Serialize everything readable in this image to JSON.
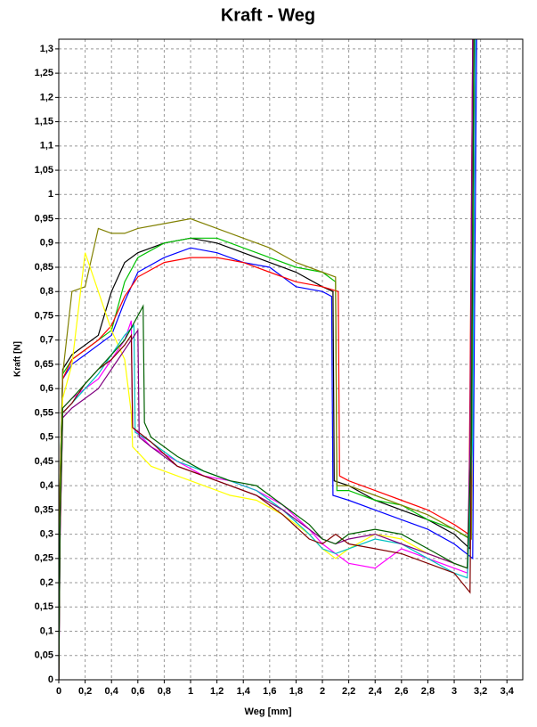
{
  "chart_data": {
    "type": "line",
    "title": "Kraft - Weg",
    "x_label": "Weg [mm]",
    "y_label": "Kraft [N]",
    "grid": true,
    "xlim": [
      0,
      3.52
    ],
    "ylim": [
      0,
      1.32
    ],
    "xticks": [
      0,
      {
        "value": 0.2,
        "label": "0,2"
      },
      {
        "value": 0.4,
        "label": "0,4"
      },
      {
        "value": 0.6,
        "label": "0,6"
      },
      {
        "value": 0.8,
        "label": "0,8"
      },
      1,
      {
        "value": 1.2,
        "label": "1,2"
      },
      {
        "value": 1.4,
        "label": "1,4"
      },
      {
        "value": 1.6,
        "label": "1,6"
      },
      {
        "value": 1.8,
        "label": "1,8"
      },
      2,
      {
        "value": 2.2,
        "label": "2,2"
      },
      {
        "value": 2.4,
        "label": "2,4"
      },
      {
        "value": 2.6,
        "label": "2,6"
      },
      {
        "value": 2.8,
        "label": "2,8"
      },
      3,
      {
        "value": 3.2,
        "label": "3,2"
      },
      {
        "value": 3.4,
        "label": "3,4"
      }
    ],
    "yticks": [
      0,
      {
        "value": 0.05,
        "label": "0,05"
      },
      {
        "value": 0.1,
        "label": "0,1"
      },
      {
        "value": 0.15,
        "label": "0,15"
      },
      {
        "value": 0.2,
        "label": "0,2"
      },
      {
        "value": 0.25,
        "label": "0,25"
      },
      {
        "value": 0.3,
        "label": "0,3"
      },
      {
        "value": 0.35,
        "label": "0,35"
      },
      {
        "value": 0.4,
        "label": "0,4"
      },
      {
        "value": 0.45,
        "label": "0,45"
      },
      {
        "value": 0.5,
        "label": "0,5"
      },
      {
        "value": 0.55,
        "label": "0,55"
      },
      {
        "value": 0.6,
        "label": "0,6"
      },
      {
        "value": 0.65,
        "label": "0,65"
      },
      {
        "value": 0.7,
        "label": "0,7"
      },
      {
        "value": 0.75,
        "label": "0,75"
      },
      {
        "value": 0.8,
        "label": "0,8"
      },
      {
        "value": 0.85,
        "label": "0,85"
      },
      {
        "value": 0.9,
        "label": "0,9"
      },
      {
        "value": 0.95,
        "label": "0,95"
      },
      1,
      {
        "value": 1.05,
        "label": "1,05"
      },
      {
        "value": 1.1,
        "label": "1,1"
      },
      {
        "value": 1.15,
        "label": "1,15"
      },
      {
        "value": 1.2,
        "label": "1,2"
      },
      {
        "value": 1.25,
        "label": "1,25"
      },
      {
        "value": 1.3,
        "label": "1,3"
      }
    ],
    "series": [
      {
        "color": "#000000",
        "x": [
          0,
          0.01,
          0.03,
          0.1,
          0.2,
          0.3,
          0.4,
          0.5,
          0.6,
          0.8,
          1.0,
          1.2,
          1.4,
          1.6,
          1.8,
          2.0,
          2.08,
          2.09,
          2.2,
          2.4,
          2.6,
          2.8,
          3.0,
          3.12,
          3.13,
          3.15
        ],
        "values": [
          0,
          0.4,
          0.64,
          0.67,
          0.69,
          0.71,
          0.8,
          0.86,
          0.88,
          0.9,
          0.91,
          0.9,
          0.88,
          0.86,
          0.84,
          0.81,
          0.8,
          0.41,
          0.4,
          0.37,
          0.35,
          0.33,
          0.3,
          0.27,
          0.6,
          1.32
        ]
      },
      {
        "color": "#00c000",
        "x": [
          0,
          0.01,
          0.03,
          0.1,
          0.2,
          0.3,
          0.4,
          0.5,
          0.6,
          0.8,
          1.0,
          1.2,
          1.4,
          1.6,
          1.8,
          2.0,
          2.1,
          2.11,
          2.2,
          2.4,
          2.6,
          2.8,
          3.0,
          3.12,
          3.13,
          3.15
        ],
        "values": [
          0,
          0.42,
          0.63,
          0.66,
          0.68,
          0.7,
          0.72,
          0.82,
          0.87,
          0.9,
          0.91,
          0.91,
          0.89,
          0.87,
          0.85,
          0.84,
          0.82,
          0.39,
          0.39,
          0.37,
          0.36,
          0.33,
          0.31,
          0.29,
          0.6,
          1.32
        ]
      },
      {
        "color": "#0000ff",
        "x": [
          0,
          0.01,
          0.03,
          0.1,
          0.2,
          0.3,
          0.4,
          0.5,
          0.6,
          0.8,
          1.0,
          1.2,
          1.4,
          1.6,
          1.8,
          2.0,
          2.07,
          2.08,
          2.2,
          2.4,
          2.6,
          2.8,
          3.0,
          3.14,
          3.15,
          3.17
        ],
        "values": [
          0,
          0.38,
          0.62,
          0.65,
          0.67,
          0.69,
          0.71,
          0.78,
          0.84,
          0.87,
          0.89,
          0.88,
          0.86,
          0.85,
          0.81,
          0.8,
          0.79,
          0.38,
          0.37,
          0.35,
          0.33,
          0.31,
          0.28,
          0.25,
          0.6,
          1.32
        ]
      },
      {
        "color": "#ff0000",
        "x": [
          0,
          0.01,
          0.03,
          0.1,
          0.2,
          0.3,
          0.4,
          0.5,
          0.6,
          0.8,
          1.0,
          1.2,
          1.4,
          1.6,
          1.8,
          2.0,
          2.12,
          2.13,
          2.2,
          2.4,
          2.6,
          2.8,
          3.0,
          3.11,
          3.12,
          3.14
        ],
        "values": [
          0,
          0.41,
          0.62,
          0.66,
          0.68,
          0.7,
          0.73,
          0.79,
          0.83,
          0.86,
          0.87,
          0.87,
          0.86,
          0.84,
          0.82,
          0.81,
          0.8,
          0.42,
          0.41,
          0.39,
          0.37,
          0.35,
          0.32,
          0.3,
          0.6,
          1.32
        ]
      },
      {
        "color": "#808000",
        "x": [
          0,
          0.01,
          0.03,
          0.1,
          0.2,
          0.3,
          0.4,
          0.5,
          0.6,
          0.8,
          1.0,
          1.2,
          1.4,
          1.6,
          1.8,
          2.0,
          2.1,
          2.11,
          2.2,
          2.4,
          2.6,
          2.8,
          3.0,
          3.13,
          3.14,
          3.16
        ],
        "values": [
          0,
          0.4,
          0.63,
          0.8,
          0.81,
          0.93,
          0.92,
          0.92,
          0.93,
          0.94,
          0.95,
          0.93,
          0.91,
          0.89,
          0.86,
          0.84,
          0.83,
          0.4,
          0.4,
          0.38,
          0.36,
          0.34,
          0.31,
          0.29,
          0.6,
          1.32
        ]
      },
      {
        "color": "#ff00ff",
        "x": [
          0,
          0.01,
          0.03,
          0.1,
          0.2,
          0.3,
          0.4,
          0.5,
          0.55,
          0.56,
          0.7,
          0.9,
          1.1,
          1.3,
          1.5,
          1.7,
          1.9,
          2.0,
          2.1,
          2.2,
          2.4,
          2.6,
          2.8,
          3.0,
          3.1,
          3.13,
          3.15
        ],
        "values": [
          0,
          0.3,
          0.56,
          0.58,
          0.6,
          0.62,
          0.66,
          0.7,
          0.74,
          0.52,
          0.48,
          0.45,
          0.42,
          0.41,
          0.39,
          0.36,
          0.31,
          0.28,
          0.26,
          0.24,
          0.23,
          0.27,
          0.25,
          0.23,
          0.22,
          0.5,
          1.32
        ]
      },
      {
        "color": "#ffff00",
        "x": [
          0,
          0.01,
          0.03,
          0.1,
          0.2,
          0.3,
          0.4,
          0.5,
          0.55,
          0.56,
          0.7,
          0.9,
          1.1,
          1.3,
          1.5,
          1.7,
          1.9,
          2.0,
          2.1,
          2.2,
          2.4,
          2.6,
          2.8,
          3.0,
          3.1,
          3.13,
          3.15
        ],
        "values": [
          0,
          0.35,
          0.58,
          0.65,
          0.88,
          0.8,
          0.72,
          0.66,
          0.55,
          0.48,
          0.44,
          0.42,
          0.4,
          0.38,
          0.37,
          0.34,
          0.3,
          0.27,
          0.25,
          0.27,
          0.3,
          0.29,
          0.26,
          0.24,
          0.23,
          0.5,
          1.32
        ]
      },
      {
        "color": "#00c0c0",
        "x": [
          0,
          0.01,
          0.03,
          0.1,
          0.2,
          0.3,
          0.4,
          0.5,
          0.57,
          0.58,
          0.7,
          0.9,
          1.1,
          1.3,
          1.5,
          1.7,
          1.9,
          2.0,
          2.1,
          2.2,
          2.4,
          2.6,
          2.8,
          3.0,
          3.1,
          3.14,
          3.16
        ],
        "values": [
          0,
          0.32,
          0.55,
          0.57,
          0.6,
          0.63,
          0.67,
          0.71,
          0.73,
          0.51,
          0.49,
          0.45,
          0.43,
          0.41,
          0.39,
          0.35,
          0.3,
          0.27,
          0.26,
          0.27,
          0.29,
          0.28,
          0.25,
          0.22,
          0.21,
          0.5,
          1.32
        ]
      },
      {
        "color": "#800080",
        "x": [
          0,
          0.01,
          0.03,
          0.1,
          0.2,
          0.3,
          0.4,
          0.5,
          0.6,
          0.61,
          0.7,
          0.9,
          1.1,
          1.3,
          1.5,
          1.7,
          1.9,
          2.0,
          2.1,
          2.2,
          2.4,
          2.6,
          2.8,
          3.0,
          3.1,
          3.12,
          3.14
        ],
        "values": [
          0,
          0.3,
          0.54,
          0.56,
          0.58,
          0.6,
          0.64,
          0.68,
          0.72,
          0.5,
          0.48,
          0.44,
          0.42,
          0.4,
          0.38,
          0.35,
          0.31,
          0.29,
          0.28,
          0.29,
          0.3,
          0.28,
          0.26,
          0.24,
          0.23,
          0.5,
          1.32
        ]
      },
      {
        "color": "#800000",
        "x": [
          0,
          0.01,
          0.03,
          0.1,
          0.2,
          0.3,
          0.4,
          0.5,
          0.55,
          0.56,
          0.7,
          0.9,
          1.1,
          1.3,
          1.5,
          1.7,
          1.9,
          2.0,
          2.1,
          2.2,
          2.4,
          2.6,
          2.8,
          3.0,
          3.12,
          3.13,
          3.15
        ],
        "values": [
          0,
          0.31,
          0.55,
          0.57,
          0.61,
          0.64,
          0.66,
          0.69,
          0.71,
          0.52,
          0.49,
          0.44,
          0.42,
          0.4,
          0.38,
          0.34,
          0.29,
          0.28,
          0.3,
          0.28,
          0.27,
          0.26,
          0.24,
          0.22,
          0.18,
          0.5,
          1.32
        ]
      },
      {
        "color": "#006000",
        "x": [
          0,
          0.01,
          0.03,
          0.1,
          0.2,
          0.3,
          0.4,
          0.5,
          0.64,
          0.65,
          0.7,
          0.9,
          1.1,
          1.3,
          1.5,
          1.7,
          1.9,
          2.0,
          2.1,
          2.2,
          2.4,
          2.6,
          2.8,
          3.0,
          3.1,
          3.13,
          3.15
        ],
        "values": [
          0,
          0.34,
          0.56,
          0.58,
          0.61,
          0.64,
          0.67,
          0.7,
          0.77,
          0.53,
          0.5,
          0.46,
          0.43,
          0.41,
          0.4,
          0.36,
          0.32,
          0.29,
          0.28,
          0.3,
          0.31,
          0.3,
          0.27,
          0.24,
          0.23,
          0.5,
          1.32
        ]
      }
    ]
  }
}
